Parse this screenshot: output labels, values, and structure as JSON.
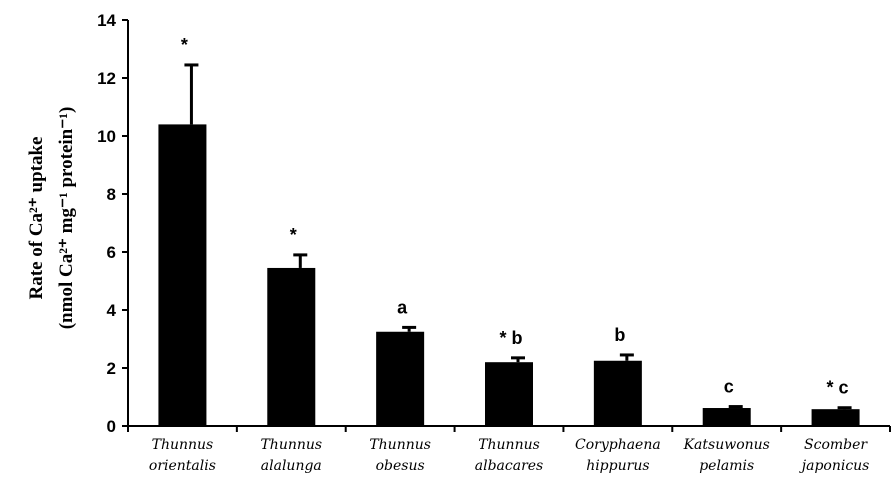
{
  "chart_data": {
    "type": "bar",
    "categories": [
      {
        "line1": "Thunnus",
        "line2": "orientalis"
      },
      {
        "line1": "Thunnus",
        "line2": "alalunga"
      },
      {
        "line1": "Thunnus",
        "line2": "obesus"
      },
      {
        "line1": "Thunnus",
        "line2": "albacares"
      },
      {
        "line1": "Coryphaena",
        "line2": "hippurus"
      },
      {
        "line1": "Katsuwonus",
        "line2": "pelamis"
      },
      {
        "line1": "Scomber",
        "line2": "japonicus"
      }
    ],
    "values": [
      10.4,
      5.45,
      3.25,
      2.2,
      2.25,
      0.62,
      0.58
    ],
    "errors": [
      2.05,
      0.45,
      0.15,
      0.15,
      0.2,
      0.05,
      0.05
    ],
    "annotations": [
      "*",
      "*",
      "a",
      "* b",
      "b",
      "c",
      "* c"
    ],
    "ylabel_line1": "Rate of Ca²⁺ uptake",
    "ylabel_line2": "(nmol Ca²⁺ mg⁻¹ protein⁻¹)",
    "ylim": [
      0,
      14
    ],
    "yticks": [
      0,
      2,
      4,
      6,
      8,
      10,
      12,
      14
    ],
    "bar_color": "#000000",
    "grid": false
  }
}
